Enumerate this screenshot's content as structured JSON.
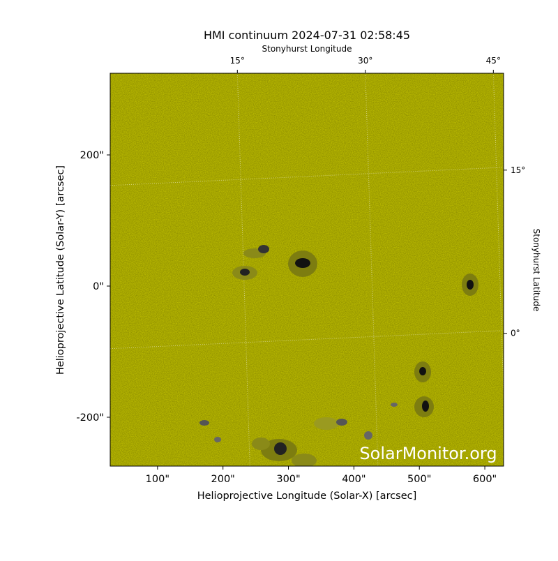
{
  "chart_data": {
    "type": "image",
    "title": "HMI continuum 2024-07-31 02:58:45",
    "x_label": "Helioprojective Longitude (Solar-X) [arcsec]",
    "y_label": "Helioprojective Latitude (Solar-Y) [arcsec]",
    "x2_label": "Stonyhurst Longitude",
    "y2_label": "Stonyhurst Latitude",
    "watermark": "SolarMonitor.org",
    "color": "#c9c900",
    "grid": true,
    "xlim": [
      27.7,
      628.7
    ],
    "ylim": [
      -274.5,
      324.5
    ],
    "xticks": [
      {
        "value": 100,
        "label": "100\""
      },
      {
        "value": 200,
        "label": "200\""
      },
      {
        "value": 300,
        "label": "300\""
      },
      {
        "value": 400,
        "label": "400\""
      },
      {
        "value": 500,
        "label": "500\""
      },
      {
        "value": 600,
        "label": "600\""
      }
    ],
    "yticks": [
      {
        "value": -200,
        "label": "-200\""
      },
      {
        "value": 0,
        "label": "0\""
      },
      {
        "value": 200,
        "label": "200\""
      }
    ],
    "x2lim": [
      0.1,
      46.2
    ],
    "x2ticks": [
      {
        "value": 15,
        "label": "15°"
      },
      {
        "value": 30,
        "label": "30°"
      },
      {
        "value": 45,
        "label": "45°"
      }
    ],
    "y2lim": [
      -12.2,
      23.9
    ],
    "y2ticks": [
      {
        "value": 0,
        "label": "0°"
      },
      {
        "value": 15,
        "label": "15°"
      }
    ]
  }
}
